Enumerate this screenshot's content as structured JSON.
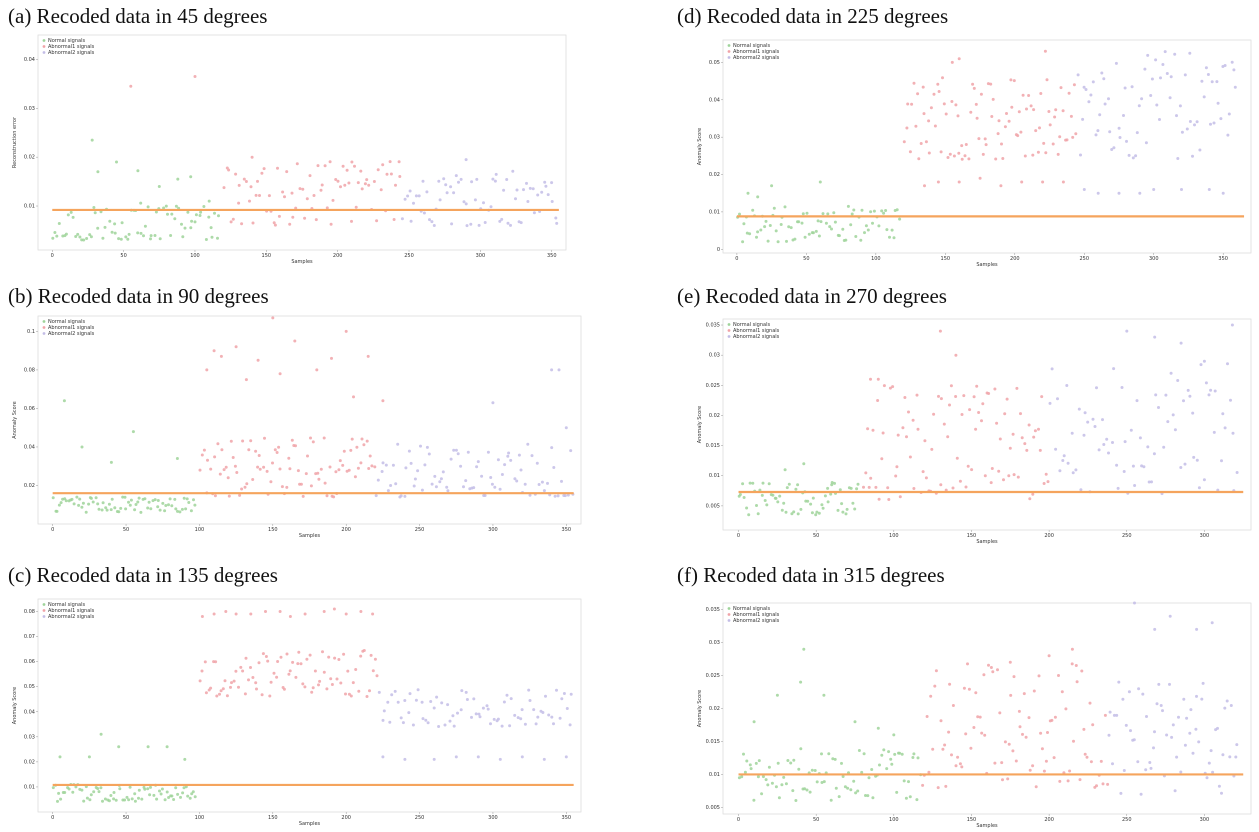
{
  "colors": {
    "normal": "#9fd49a",
    "abnormal1": "#f0a3a8",
    "abnormal2": "#c3bde6",
    "threshold": "#f5a45d",
    "frame": "#dddddd"
  },
  "chart_data": [
    {
      "id": "a",
      "caption": "(a) Recoded data in 45 degrees",
      "type": "scatter",
      "xlabel": "Samples",
      "ylabel": "Reconstruction error",
      "xlim": [
        -10,
        360
      ],
      "ylim": [
        0.001,
        0.045
      ],
      "xticks": [
        0,
        50,
        100,
        150,
        200,
        250,
        300,
        350
      ],
      "yticks": [
        0.01,
        0.02,
        0.03,
        0.04
      ],
      "threshold": 0.0092,
      "legend": [
        "Normal signals",
        "Abnormal1 signals",
        "Abnormal2 signals"
      ],
      "series": [
        {
          "name": "Normal signals",
          "x0": 0,
          "x1": 118,
          "n": 75,
          "lo": 0.003,
          "hi": 0.0105,
          "outliers": [
            [
              28,
              0.0235
            ],
            [
              32,
              0.017
            ],
            [
              45,
              0.019
            ],
            [
              60,
              0.0172
            ],
            [
              75,
              0.014
            ],
            [
              88,
              0.0155
            ],
            [
              97,
              0.016
            ],
            [
              110,
              0.011
            ],
            [
              62,
              0.0106
            ]
          ]
        },
        {
          "name": "Abnormal1 signals",
          "x0": 120,
          "x1": 245,
          "n": 80,
          "lo": 0.006,
          "hi": 0.0195,
          "outliers": [
            [
              55,
              0.0345
            ],
            [
              100,
              0.0365
            ],
            [
              140,
              0.02
            ],
            [
              210,
              0.019
            ]
          ]
        },
        {
          "name": "Abnormal2 signals",
          "x0": 245,
          "x1": 355,
          "n": 70,
          "lo": 0.006,
          "hi": 0.0175,
          "outliers": [
            [
              290,
              0.0195
            ]
          ]
        }
      ]
    },
    {
      "id": "b",
      "caption": "(b) Recoded data in 90 degrees",
      "type": "scatter",
      "xlabel": "Samples",
      "ylabel": "Anomaly Score",
      "xlim": [
        -10,
        360
      ],
      "ylim": [
        0.0,
        0.108
      ],
      "xticks": [
        0,
        50,
        100,
        150,
        200,
        250,
        300,
        350
      ],
      "yticks": [
        0.02,
        0.04,
        0.06,
        0.08,
        0.1
      ],
      "threshold": 0.016,
      "legend": [
        "Normal signals",
        "Abnormal1 signals",
        "Abnormal2 signals"
      ],
      "series": [
        {
          "name": "Normal signals",
          "x0": 0,
          "x1": 98,
          "n": 75,
          "lo": 0.006,
          "hi": 0.014,
          "outliers": [
            [
              8,
              0.064
            ],
            [
              20,
              0.04
            ],
            [
              40,
              0.032
            ],
            [
              55,
              0.048
            ],
            [
              85,
              0.034
            ]
          ]
        },
        {
          "name": "Abnormal1 signals",
          "x0": 100,
          "x1": 220,
          "n": 90,
          "lo": 0.014,
          "hi": 0.045,
          "outliers": [
            [
              105,
              0.08
            ],
            [
              110,
              0.09
            ],
            [
              115,
              0.087
            ],
            [
              125,
              0.092
            ],
            [
              140,
              0.085
            ],
            [
              150,
              0.107
            ],
            [
              155,
              0.078
            ],
            [
              165,
              0.095
            ],
            [
              180,
              0.08
            ],
            [
              190,
              0.086
            ],
            [
              200,
              0.1
            ],
            [
              205,
              0.066
            ],
            [
              215,
              0.087
            ],
            [
              225,
              0.064
            ],
            [
              132,
              0.075
            ]
          ]
        },
        {
          "name": "Abnormal2 signals",
          "x0": 220,
          "x1": 355,
          "n": 85,
          "lo": 0.014,
          "hi": 0.042,
          "outliers": [
            [
              300,
              0.063
            ],
            [
              340,
              0.08
            ],
            [
              345,
              0.08
            ],
            [
              350,
              0.05
            ]
          ]
        }
      ]
    },
    {
      "id": "c",
      "caption": "(c) Recoded data in 135 degrees",
      "type": "scatter",
      "xlabel": "Samples",
      "ylabel": "Anomaly Score",
      "xlim": [
        -10,
        360
      ],
      "ylim": [
        0.0,
        0.085
      ],
      "xticks": [
        0,
        50,
        100,
        150,
        200,
        250,
        300,
        350
      ],
      "yticks": [
        0.01,
        0.02,
        0.03,
        0.04,
        0.05,
        0.06,
        0.07,
        0.08
      ],
      "threshold": 0.0108,
      "legend": [
        "Normal signals",
        "Abnormal1 signals",
        "Abnormal2 signals"
      ],
      "series": [
        {
          "name": "Normal signals",
          "x0": 0,
          "x1": 98,
          "n": 75,
          "lo": 0.004,
          "hi": 0.011,
          "outliers": [
            [
              5,
              0.022
            ],
            [
              25,
              0.022
            ],
            [
              33,
              0.031
            ],
            [
              45,
              0.026
            ],
            [
              65,
              0.026
            ],
            [
              78,
              0.026
            ],
            [
              90,
              0.021
            ]
          ]
        },
        {
          "name": "Abnormal1 signals",
          "x0": 100,
          "x1": 222,
          "n": 85,
          "lo": 0.046,
          "hi": 0.065,
          "outliers": [
            [
              102,
              0.078
            ],
            [
              110,
              0.079
            ],
            [
              118,
              0.08
            ],
            [
              125,
              0.079
            ],
            [
              135,
              0.079
            ],
            [
              145,
              0.08
            ],
            [
              155,
              0.08
            ],
            [
              162,
              0.078
            ],
            [
              172,
              0.079
            ],
            [
              185,
              0.08
            ],
            [
              192,
              0.081
            ],
            [
              200,
              0.079
            ],
            [
              210,
              0.08
            ],
            [
              218,
              0.079
            ]
          ]
        },
        {
          "name": "Abnormal2 signals",
          "x0": 222,
          "x1": 355,
          "n": 75,
          "lo": 0.034,
          "hi": 0.049,
          "outliers": [
            [
              225,
              0.022
            ],
            [
              240,
              0.021
            ],
            [
              260,
              0.021
            ],
            [
              275,
              0.022
            ],
            [
              290,
              0.022
            ],
            [
              305,
              0.021
            ],
            [
              320,
              0.022
            ],
            [
              335,
              0.021
            ],
            [
              350,
              0.022
            ]
          ]
        }
      ]
    },
    {
      "id": "d",
      "caption": "(d) Recoded data in 225 degrees",
      "type": "scatter",
      "xlabel": "Samples",
      "ylabel": "Anomaly Score",
      "xlim": [
        -10,
        370
      ],
      "ylim": [
        -0.001,
        0.056
      ],
      "xticks": [
        0,
        50,
        100,
        150,
        200,
        250,
        300,
        350
      ],
      "yticks": [
        0.0,
        0.01,
        0.02,
        0.03,
        0.04,
        0.05
      ],
      "threshold": 0.0088,
      "legend": [
        "Normal signals",
        "Abnormal1 signals",
        "Abnormal2 signals"
      ],
      "series": [
        {
          "name": "Normal signals",
          "x0": 0,
          "x1": 118,
          "n": 80,
          "lo": 0.002,
          "hi": 0.0115,
          "outliers": [
            [
              8,
              0.015
            ],
            [
              15,
              0.014
            ],
            [
              25,
              0.017
            ],
            [
              60,
              0.018
            ]
          ]
        },
        {
          "name": "Abnormal1 signals",
          "x0": 120,
          "x1": 245,
          "n": 95,
          "lo": 0.024,
          "hi": 0.046,
          "outliers": [
            [
              135,
              0.017
            ],
            [
              145,
              0.018
            ],
            [
              160,
              0.018
            ],
            [
              175,
              0.019
            ],
            [
              190,
              0.017
            ],
            [
              205,
              0.018
            ],
            [
              220,
              0.018
            ],
            [
              235,
              0.018
            ],
            [
              155,
              0.05
            ],
            [
              160,
              0.051
            ],
            [
              222,
              0.053
            ]
          ]
        },
        {
          "name": "Abnormal2 signals",
          "x0": 245,
          "x1": 360,
          "n": 75,
          "lo": 0.024,
          "hi": 0.053,
          "outliers": [
            [
              250,
              0.016
            ],
            [
              260,
              0.015
            ],
            [
              275,
              0.015
            ],
            [
              290,
              0.015
            ],
            [
              300,
              0.016
            ],
            [
              320,
              0.016
            ],
            [
              340,
              0.016
            ],
            [
              350,
              0.015
            ]
          ]
        }
      ]
    },
    {
      "id": "e",
      "caption": "(e) Recoded data in 270 degrees",
      "type": "scatter",
      "xlabel": "Samples",
      "ylabel": "Anomaly Score",
      "xlim": [
        -10,
        330
      ],
      "ylim": [
        0.001,
        0.036
      ],
      "xticks": [
        0,
        50,
        100,
        150,
        200,
        250,
        300
      ],
      "yticks": [
        0.005,
        0.01,
        0.015,
        0.02,
        0.025,
        0.03,
        0.035
      ],
      "threshold": 0.0073,
      "legend": [
        "Normal signals",
        "Abnormal1 signals",
        "Abnormal2 signals"
      ],
      "series": [
        {
          "name": "Normal signals",
          "x0": 0,
          "x1": 78,
          "n": 65,
          "lo": 0.0035,
          "hi": 0.009,
          "outliers": [
            [
              30,
              0.011
            ],
            [
              42,
              0.012
            ],
            [
              60,
              0.0085
            ]
          ]
        },
        {
          "name": "Abnormal1 signals",
          "x0": 80,
          "x1": 200,
          "n": 95,
          "lo": 0.006,
          "hi": 0.025,
          "outliers": [
            [
              85,
              0.026
            ],
            [
              90,
              0.026
            ],
            [
              130,
              0.034
            ],
            [
              140,
              0.03
            ]
          ]
        },
        {
          "name": "Abnormal2 signals",
          "x0": 200,
          "x1": 322,
          "n": 80,
          "lo": 0.007,
          "hi": 0.03,
          "outliers": [
            [
              250,
              0.034
            ],
            [
              268,
              0.033
            ],
            [
              285,
              0.032
            ],
            [
              300,
              0.029
            ],
            [
              318,
              0.035
            ]
          ]
        }
      ]
    },
    {
      "id": "f",
      "caption": "(f) Recoded data in 315 degrees",
      "type": "scatter",
      "xlabel": "Samples",
      "ylabel": "Anomaly Score",
      "xlim": [
        -10,
        330
      ],
      "ylim": [
        0.004,
        0.036
      ],
      "xticks": [
        0,
        50,
        100,
        150,
        200,
        250,
        300
      ],
      "yticks": [
        0.005,
        0.01,
        0.015,
        0.02,
        0.025,
        0.03,
        0.035
      ],
      "threshold": 0.01,
      "legend": [
        "Normal signals",
        "Abnormal1 signals",
        "Abnormal2 signals"
      ],
      "series": [
        {
          "name": "Normal signals",
          "x0": 0,
          "x1": 118,
          "n": 90,
          "lo": 0.006,
          "hi": 0.014,
          "outliers": [
            [
              10,
              0.018
            ],
            [
              25,
              0.022
            ],
            [
              40,
              0.024
            ],
            [
              42,
              0.029
            ],
            [
              55,
              0.022
            ],
            [
              75,
              0.018
            ],
            [
              90,
              0.017
            ],
            [
              100,
              0.016
            ]
          ]
        },
        {
          "name": "Abnormal1 signals",
          "x0": 118,
          "x1": 238,
          "n": 95,
          "lo": 0.008,
          "hi": 0.027,
          "outliers": [
            [
              175,
              0.027
            ],
            [
              200,
              0.028
            ],
            [
              215,
              0.029
            ]
          ]
        },
        {
          "name": "Abnormal2 signals",
          "x0": 238,
          "x1": 322,
          "n": 65,
          "lo": 0.007,
          "hi": 0.024,
          "outliers": [
            [
              255,
              0.036
            ],
            [
              268,
              0.032
            ],
            [
              278,
              0.034
            ],
            [
              295,
              0.032
            ],
            [
              305,
              0.033
            ]
          ]
        }
      ]
    }
  ]
}
